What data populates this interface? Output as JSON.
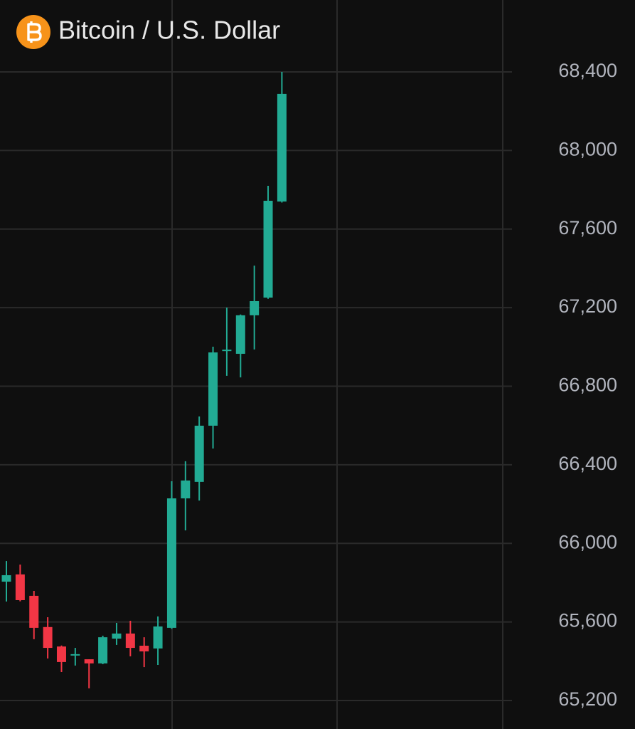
{
  "chart_data": {
    "type": "candlestick",
    "title": "Bitcoin / U.S. Dollar",
    "up_color": "#22ab94",
    "down_color": "#f23645",
    "ylim": [
      65055,
      68766
    ],
    "yticks": [
      {
        "value": 65200,
        "label": "65,200"
      },
      {
        "value": 65600,
        "label": "65,600"
      },
      {
        "value": 66000,
        "label": "66,000"
      },
      {
        "value": 66400,
        "label": "66,400"
      },
      {
        "value": 66800,
        "label": "66,800"
      },
      {
        "value": 67200,
        "label": "67,200"
      },
      {
        "value": 67600,
        "label": "67,600"
      },
      {
        "value": 68000,
        "label": "68,000"
      },
      {
        "value": 68400,
        "label": "68,400"
      }
    ],
    "grid": true,
    "candles": [
      {
        "open": 65805,
        "high": 65910,
        "low": 65704,
        "close": 65838
      },
      {
        "open": 65842,
        "high": 65892,
        "low": 65705,
        "close": 65711
      },
      {
        "open": 65733,
        "high": 65758,
        "low": 65512,
        "close": 65570
      },
      {
        "open": 65574,
        "high": 65624,
        "low": 65414,
        "close": 65468
      },
      {
        "open": 65475,
        "high": 65480,
        "low": 65345,
        "close": 65396
      },
      {
        "open": 65430,
        "high": 65468,
        "low": 65378,
        "close": 65436
      },
      {
        "open": 65410,
        "high": 65410,
        "low": 65262,
        "close": 65389
      },
      {
        "open": 65389,
        "high": 65530,
        "low": 65385,
        "close": 65522
      },
      {
        "open": 65515,
        "high": 65595,
        "low": 65483,
        "close": 65541
      },
      {
        "open": 65541,
        "high": 65606,
        "low": 65425,
        "close": 65468
      },
      {
        "open": 65479,
        "high": 65522,
        "low": 65370,
        "close": 65450
      },
      {
        "open": 65465,
        "high": 65628,
        "low": 65381,
        "close": 65577
      },
      {
        "open": 65570,
        "high": 66316,
        "low": 65565,
        "close": 66229
      },
      {
        "open": 66229,
        "high": 66418,
        "low": 66066,
        "close": 66320
      },
      {
        "open": 66313,
        "high": 66646,
        "low": 66218,
        "close": 66599
      },
      {
        "open": 66599,
        "high": 67001,
        "low": 66483,
        "close": 66972
      },
      {
        "open": 66979,
        "high": 67200,
        "low": 66853,
        "close": 66986
      },
      {
        "open": 66965,
        "high": 67165,
        "low": 66845,
        "close": 67161
      },
      {
        "open": 67161,
        "high": 67414,
        "low": 66987,
        "close": 67233
      },
      {
        "open": 67251,
        "high": 67820,
        "low": 67245,
        "close": 67744
      },
      {
        "open": 67740,
        "high": 68400,
        "low": 67735,
        "close": 68288
      }
    ]
  }
}
